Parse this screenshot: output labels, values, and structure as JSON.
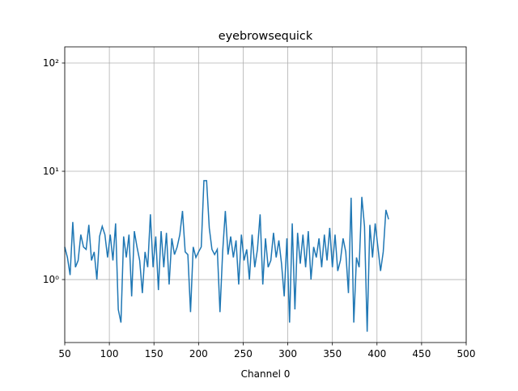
{
  "chart_data": {
    "type": "line",
    "title": "eyebrowsequick",
    "xlabel": "Channel 0",
    "x": [
      50,
      53,
      56,
      59,
      62,
      65,
      68,
      71,
      74,
      77,
      80,
      83,
      86,
      89,
      92,
      95,
      98,
      101,
      104,
      107,
      110,
      113,
      116,
      119,
      122,
      125,
      128,
      131,
      134,
      137,
      140,
      143,
      146,
      149,
      152,
      155,
      158,
      161,
      164,
      167,
      170,
      173,
      176,
      179,
      182,
      185,
      188,
      191,
      194,
      197,
      200,
      203,
      206,
      209,
      212,
      215,
      218,
      221,
      224,
      227,
      230,
      233,
      236,
      239,
      242,
      245,
      248,
      251,
      254,
      257,
      260,
      263,
      266,
      269,
      272,
      275,
      278,
      281,
      284,
      287,
      290,
      293,
      296,
      299,
      302,
      305,
      308,
      311,
      314,
      317,
      320,
      323,
      326,
      329,
      332,
      335,
      338,
      341,
      344,
      347,
      350,
      353,
      356,
      359,
      362,
      365,
      368,
      371,
      374,
      377,
      380,
      383,
      386,
      389,
      392,
      395,
      398,
      401,
      404,
      407,
      410,
      413
    ],
    "series": [
      {
        "color": "#1f77b4",
        "values": [
          2.0,
          1.6,
          1.1,
          3.4,
          1.3,
          1.5,
          2.6,
          2.0,
          1.9,
          3.2,
          1.5,
          1.8,
          1.0,
          2.5,
          3.1,
          2.6,
          1.6,
          2.6,
          1.5,
          3.3,
          0.53,
          0.4,
          2.5,
          1.6,
          2.6,
          0.7,
          2.8,
          2.0,
          1.5,
          0.75,
          1.8,
          1.3,
          4.0,
          1.3,
          2.5,
          0.8,
          2.8,
          1.3,
          2.7,
          0.9,
          2.4,
          1.7,
          2.0,
          2.6,
          4.3,
          1.8,
          1.7,
          0.5,
          2.0,
          1.6,
          1.8,
          2.0,
          8.2,
          8.2,
          3.0,
          1.9,
          1.7,
          1.9,
          0.5,
          1.8,
          4.3,
          1.7,
          2.5,
          1.6,
          2.3,
          0.9,
          2.6,
          1.5,
          1.9,
          1.0,
          2.6,
          1.3,
          1.9,
          4.0,
          0.9,
          2.4,
          1.3,
          1.5,
          2.7,
          1.6,
          2.3,
          1.4,
          0.7,
          2.4,
          0.4,
          3.3,
          0.53,
          2.7,
          1.4,
          2.6,
          1.3,
          2.8,
          1.0,
          2.0,
          1.6,
          2.4,
          1.3,
          2.6,
          1.5,
          3.0,
          1.3,
          2.6,
          1.2,
          1.5,
          2.4,
          1.8,
          0.75,
          5.7,
          0.4,
          1.6,
          1.3,
          5.8,
          3.1,
          0.33,
          3.2,
          1.6,
          3.3,
          2.0,
          1.2,
          1.8,
          4.4,
          3.6
        ]
      }
    ],
    "xlim": [
      50,
      500
    ],
    "xticks": [
      50,
      100,
      150,
      200,
      250,
      300,
      350,
      400,
      450,
      500
    ],
    "ylim": [
      0.262,
      141
    ],
    "yticks": [
      {
        "value": 1,
        "label": "10⁰"
      },
      {
        "value": 10,
        "label": "10¹"
      },
      {
        "value": 100,
        "label": "10²"
      }
    ],
    "ylog": true,
    "grid": true
  }
}
